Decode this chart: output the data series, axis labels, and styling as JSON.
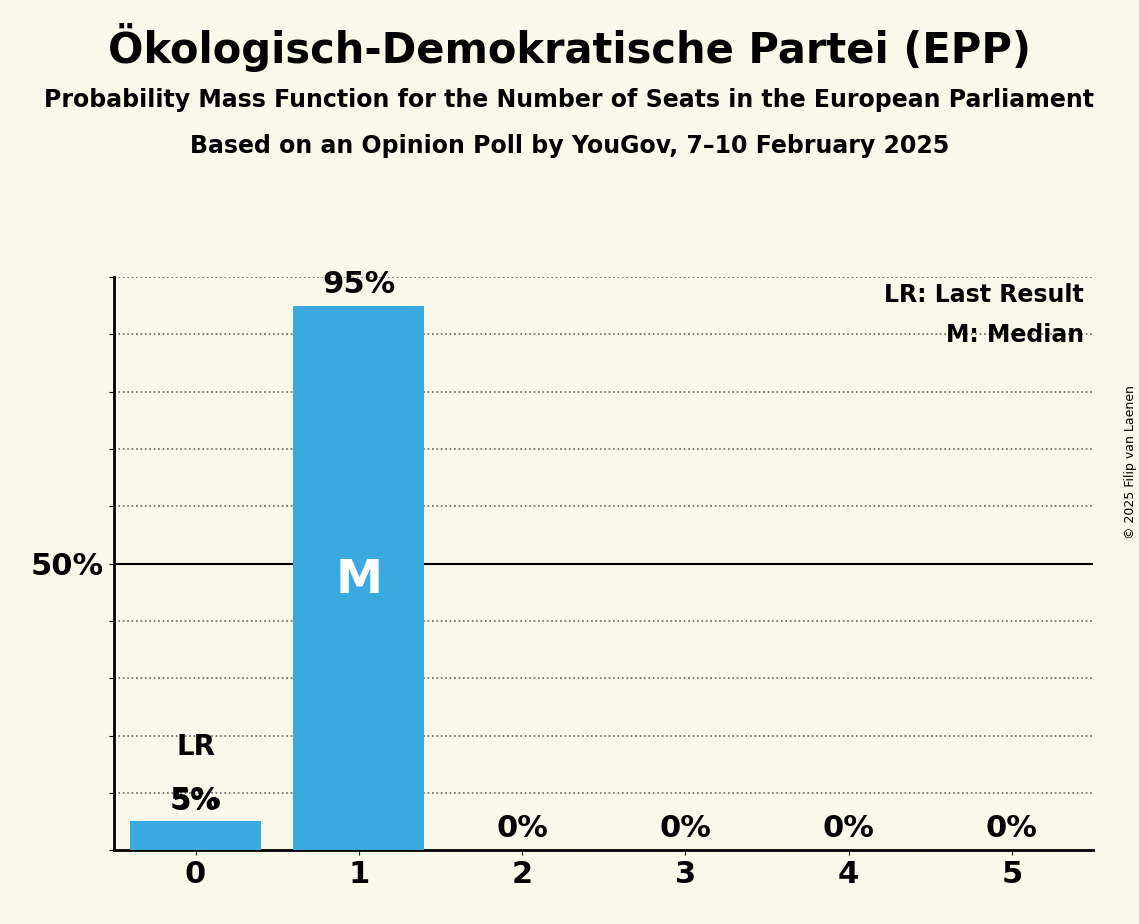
{
  "title": "Ökologisch-Demokratische Partei (EPP)",
  "subtitle1": "Probability Mass Function for the Number of Seats in the European Parliament",
  "subtitle2": "Based on an Opinion Poll by YouGov, 7–10 February 2025",
  "copyright": "© 2025 Filip van Laenen",
  "categories": [
    0,
    1,
    2,
    3,
    4,
    5
  ],
  "values": [
    0.05,
    0.95,
    0.0,
    0.0,
    0.0,
    0.0
  ],
  "bar_color": "#39a9e0",
  "background_color": "#faf8e8",
  "median_bar": 1,
  "last_result_bar": 0,
  "legend_lr": "LR: Last Result",
  "legend_m": "M: Median",
  "ylim": [
    0,
    1.0
  ],
  "title_fontsize": 30,
  "subtitle_fontsize": 17,
  "bar_label_fontsize": 22,
  "axis_tick_fontsize": 22,
  "annotation_fontsize": 20,
  "legend_fontsize": 17,
  "median_label_fontsize": 34,
  "copyright_fontsize": 9
}
